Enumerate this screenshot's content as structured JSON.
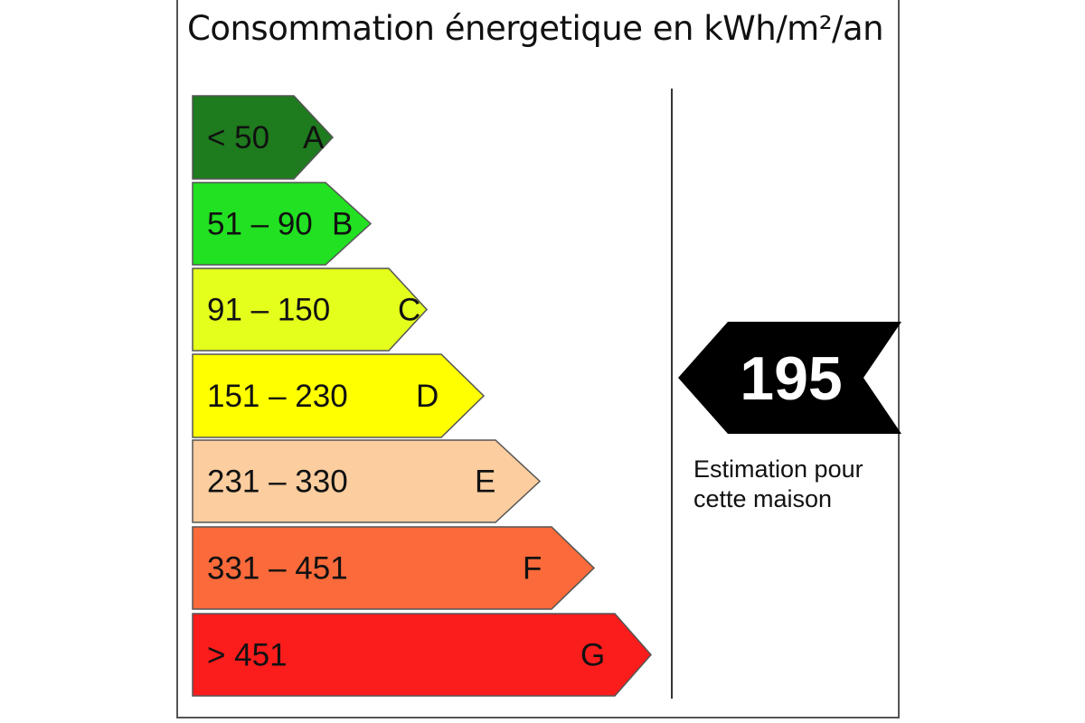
{
  "title": "Consommation énergetique en kWh/m²/an",
  "classes": [
    {
      "range": "< 50",
      "letter": "A",
      "color": "#1e7b1e"
    },
    {
      "range": "51 – 90",
      "letter": "B",
      "color": "#22e022"
    },
    {
      "range": "91 – 150",
      "letter": "C",
      "color": "#e4ff1c"
    },
    {
      "range": "151 – 230",
      "letter": "D",
      "color": "#ffff00"
    },
    {
      "range": "231 – 330",
      "letter": "E",
      "color": "#fccd9e"
    },
    {
      "range": "331 – 451",
      "letter": "F",
      "color": "#fa6a3a"
    },
    {
      "range": "> 451",
      "letter": "G",
      "color": "#fb1c1c"
    }
  ],
  "estimate": {
    "value": "195",
    "caption_line1": "Estimation pour",
    "caption_line2": "cette maison",
    "color": "#000000"
  }
}
